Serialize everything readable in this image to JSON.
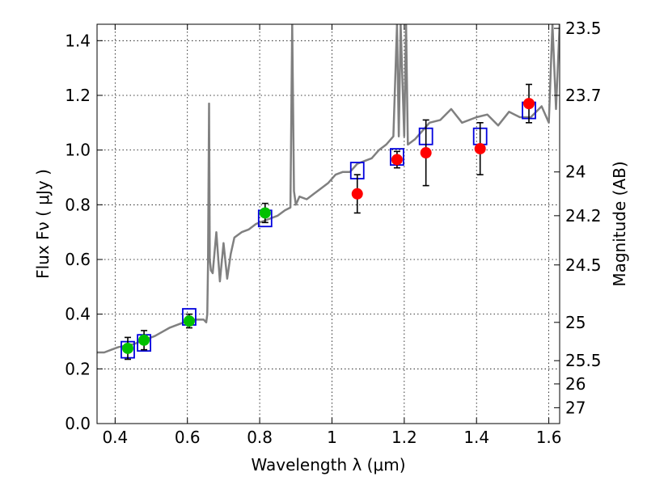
{
  "chart_data": {
    "type": "scatter",
    "xlabel": "Wavelength  λ (μm)",
    "ylabel": "Flux  Fν  ( μJy )",
    "y2label": "Magnitude (AB)",
    "xlim": [
      0.35,
      1.63
    ],
    "ylim": [
      0.0,
      1.46
    ],
    "x_ticks": [
      0.4,
      0.6,
      0.8,
      1.0,
      1.2,
      1.4,
      1.6
    ],
    "x_tick_labels": [
      "0.4",
      "0.6",
      "0.8",
      "1",
      "1.2",
      "1.4",
      "1.6"
    ],
    "y_ticks": [
      0.0,
      0.2,
      0.4,
      0.6,
      0.8,
      1.0,
      1.2,
      1.4
    ],
    "y_tick_labels": [
      "0.0",
      "0.2",
      "0.4",
      "0.6",
      "0.8",
      "1.0",
      "1.2",
      "1.4"
    ],
    "y2_ticks": [
      {
        "label": "23.5",
        "flux": 1.445
      },
      {
        "label": "23.7",
        "flux": 1.2
      },
      {
        "label": "24",
        "flux": 0.92
      },
      {
        "label": "24.2",
        "flux": 0.76
      },
      {
        "label": "24.5",
        "flux": 0.58
      },
      {
        "label": "25",
        "flux": 0.37
      },
      {
        "label": "25.5",
        "flux": 0.23
      },
      {
        "label": "26",
        "flux": 0.145
      },
      {
        "label": "27",
        "flux": 0.058
      }
    ],
    "grid": true,
    "colors": {
      "sed": "#808080",
      "optical": "#00c000",
      "nir": "#ff0000",
      "model": "#0000dd",
      "errorbar": "#000000"
    },
    "series": [
      {
        "kind": "line",
        "color": "#808080",
        "x": [
          0.35,
          0.37,
          0.39,
          0.41,
          0.43,
          0.45,
          0.47,
          0.49,
          0.51,
          0.53,
          0.55,
          0.57,
          0.59,
          0.61,
          0.63,
          0.645,
          0.652,
          0.655,
          0.657,
          0.66,
          0.662,
          0.665,
          0.67,
          0.68,
          0.69,
          0.7,
          0.71,
          0.72,
          0.73,
          0.75,
          0.77,
          0.79,
          0.81,
          0.83,
          0.85,
          0.87,
          0.885,
          0.89,
          0.895,
          0.9,
          0.91,
          0.93,
          0.95,
          0.97,
          0.99,
          1.01,
          1.03,
          1.05,
          1.07,
          1.09,
          1.11,
          1.13,
          1.15,
          1.17,
          1.18,
          1.185,
          1.19,
          1.2,
          1.205,
          1.21,
          1.23,
          1.25,
          1.27,
          1.3,
          1.33,
          1.36,
          1.4,
          1.43,
          1.46,
          1.49,
          1.52,
          1.55,
          1.58,
          1.6,
          1.61,
          1.62,
          1.63
        ],
        "y": [
          0.26,
          0.26,
          0.27,
          0.28,
          0.285,
          0.29,
          0.3,
          0.31,
          0.32,
          0.335,
          0.35,
          0.36,
          0.37,
          0.38,
          0.38,
          0.38,
          0.37,
          0.4,
          0.58,
          1.17,
          0.6,
          0.56,
          0.55,
          0.7,
          0.52,
          0.66,
          0.53,
          0.62,
          0.68,
          0.7,
          0.71,
          0.73,
          0.74,
          0.75,
          0.76,
          0.78,
          0.79,
          1.46,
          0.85,
          0.8,
          0.83,
          0.82,
          0.84,
          0.86,
          0.88,
          0.91,
          0.92,
          0.92,
          0.95,
          0.96,
          0.97,
          1.0,
          1.02,
          1.05,
          1.46,
          1.05,
          1.46,
          1.05,
          1.46,
          1.02,
          1.04,
          1.07,
          1.1,
          1.11,
          1.15,
          1.1,
          1.12,
          1.13,
          1.09,
          1.14,
          1.12,
          1.12,
          1.16,
          1.1,
          1.46,
          1.15,
          1.46
        ]
      },
      {
        "kind": "model-boxes",
        "color": "#0000dd",
        "x": [
          0.435,
          0.48,
          0.605,
          0.815,
          1.07,
          1.18,
          1.26,
          1.41,
          1.545
        ],
        "y": [
          0.27,
          0.295,
          0.39,
          0.75,
          0.925,
          0.975,
          1.05,
          1.05,
          1.145
        ]
      },
      {
        "kind": "points",
        "color": "#00c000",
        "x": [
          0.435,
          0.48,
          0.605,
          0.815
        ],
        "y": [
          0.275,
          0.305,
          0.375,
          0.77
        ],
        "err": [
          0.04,
          0.035,
          0.025,
          0.035
        ]
      },
      {
        "kind": "points",
        "color": "#ff0000",
        "x": [
          1.07,
          1.18,
          1.26,
          1.41,
          1.545
        ],
        "y": [
          0.84,
          0.965,
          0.99,
          1.005,
          1.17
        ],
        "err": [
          0.07,
          0.03,
          0.12,
          0.095,
          0.07
        ]
      }
    ]
  }
}
